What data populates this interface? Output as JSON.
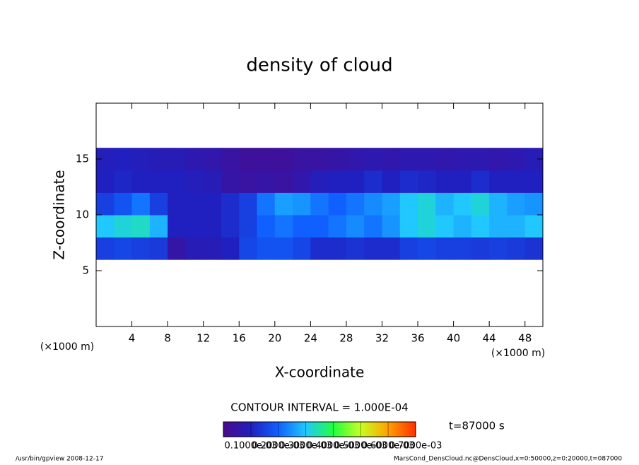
{
  "chart_data": {
    "type": "heatmap",
    "title": "density of cloud",
    "x_label": "X-coordinate",
    "y_label": "Z-coordinate",
    "x_unit": "(×1000 m)",
    "y_unit": "(×1000 m)",
    "xlim": [
      0,
      50
    ],
    "ylim": [
      0,
      20
    ],
    "xticks": [
      4,
      8,
      12,
      16,
      20,
      24,
      28,
      32,
      36,
      40,
      44,
      48
    ],
    "yticks": [
      5,
      10,
      15
    ],
    "x_edges": [
      0,
      2,
      4,
      6,
      8,
      10,
      12,
      14,
      16,
      18,
      20,
      22,
      24,
      26,
      28,
      30,
      32,
      34,
      36,
      38,
      40,
      42,
      44,
      46,
      48,
      50
    ],
    "z_edges": [
      6,
      8,
      10,
      12,
      14,
      16
    ],
    "values": [
      [
        0.00015,
        0.00016,
        0.00015,
        0.00014,
        5e-05,
        8e-05,
        8e-05,
        0.0001,
        0.00016,
        0.00018,
        0.00018,
        0.00016,
        0.00012,
        0.00012,
        0.00013,
        0.00012,
        0.00012,
        0.00015,
        0.00016,
        0.00015,
        0.00015,
        0.00014,
        0.00015,
        0.00014,
        0.00013
      ],
      [
        0.0003,
        0.00032,
        0.00033,
        0.00028,
        0.0001,
        0.0001,
        0.0001,
        0.00012,
        0.00015,
        0.0002,
        0.00022,
        0.0002,
        0.0002,
        0.00022,
        0.00024,
        0.00022,
        0.00025,
        0.0003,
        0.00032,
        0.0003,
        0.00028,
        0.0003,
        0.00028,
        0.00028,
        0.0003
      ],
      [
        0.00015,
        0.00018,
        0.00022,
        0.00015,
        0.0001,
        0.0001,
        0.0001,
        0.00012,
        0.00015,
        0.00022,
        0.00026,
        0.00025,
        0.00022,
        0.0002,
        0.00022,
        0.00024,
        0.00026,
        0.0003,
        0.00032,
        0.00028,
        0.0003,
        0.00032,
        0.00028,
        0.00026,
        0.00025
      ],
      [
        0.0001,
        0.00011,
        0.0001,
        0.0001,
        0.0001,
        9e-05,
        8e-05,
        5e-05,
        4e-05,
        5e-05,
        4e-05,
        6e-05,
        9e-05,
        0.0001,
        0.0001,
        0.00012,
        0.0001,
        0.00012,
        0.00011,
        0.0001,
        0.0001,
        0.00012,
        0.0001,
        0.0001,
        0.0001
      ],
      [
        9e-05,
        0.0001,
        9e-05,
        8e-05,
        8e-05,
        7e-05,
        6e-05,
        4e-05,
        3e-05,
        3e-05,
        3e-05,
        4e-05,
        4e-05,
        5e-05,
        6e-05,
        7e-05,
        6e-05,
        7e-05,
        7e-05,
        6e-05,
        7e-05,
        7e-05,
        6e-05,
        7e-05,
        8e-05
      ]
    ],
    "clim": [
      0,
      0.0007
    ],
    "colormap": [
      "#4a0a8c",
      "#2020c0",
      "#1060ff",
      "#20c8ff",
      "#20ff40",
      "#c8ff20",
      "#ffa000",
      "#ff3000"
    ],
    "colorbar_ticks": [
      {
        "value": 0.0001,
        "label": "0.1000e-03"
      },
      {
        "value": 0.0002,
        "label": "0.2000e-03"
      },
      {
        "value": 0.0003,
        "label": "0.3000e-03"
      },
      {
        "value": 0.0004,
        "label": "0.4000e-03"
      },
      {
        "value": 0.0005,
        "label": "0.5000e-03"
      },
      {
        "value": 0.0006,
        "label": "0.6000e-03"
      },
      {
        "value": 0.0007,
        "label": "0.7000e-03"
      }
    ],
    "contour_note": "CONTOUR INTERVAL = 1.000E-04",
    "time_label": "t=87000 s",
    "footer_left": "/usr/bin/gpview  2008-12-17",
    "footer_right": "MarsCond_DensCloud.nc@DensCloud,x=0:50000,z=0:20000,t=087000"
  }
}
